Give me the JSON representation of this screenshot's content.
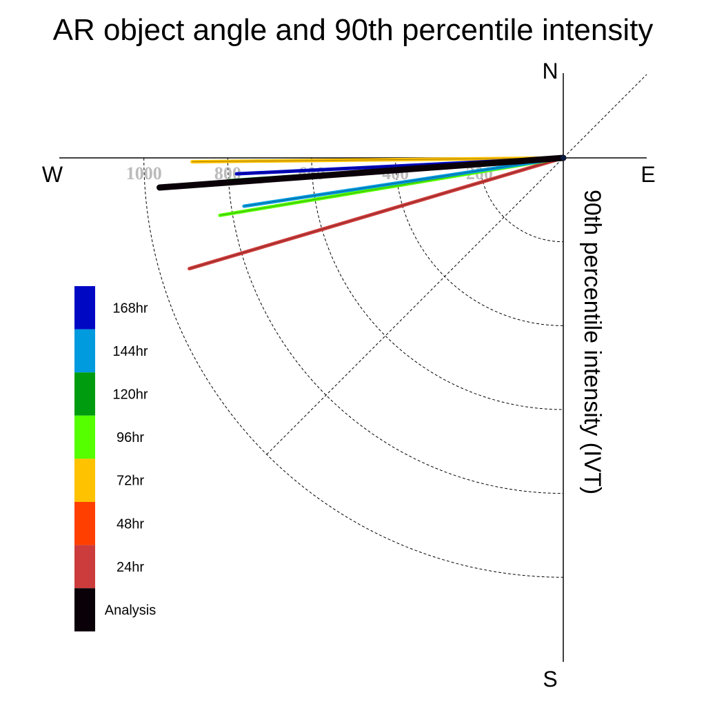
{
  "chart_data": {
    "type": "polar-vector",
    "title": "AR object angle and 90th percentile intensity",
    "ylabel": "90th percentile intensity (IVT)",
    "compass": {
      "north": "N",
      "south": "S",
      "west": "W",
      "east": "E"
    },
    "radial_ticks": [
      "200",
      "400",
      "600",
      "800",
      "1000"
    ],
    "radial_range": [
      0,
      1000
    ],
    "grid": "dashed",
    "legend_placement": "left",
    "series": [
      {
        "name": "Analysis",
        "color": "#0a0008",
        "angle_below_west_deg": 4.2,
        "intensity": 965
      },
      {
        "name": "24hr",
        "color": "#cc3c3c",
        "angle_below_west_deg": 16.5,
        "intensity": 930
      },
      {
        "name": "48hr",
        "color": "#ff3f00",
        "angle_below_west_deg": 16.5,
        "intensity": 925
      },
      {
        "name": "72hr",
        "color": "#ffc200",
        "angle_below_west_deg": 0.6,
        "intensity": 885
      },
      {
        "name": "96hr",
        "color": "#55ff00",
        "angle_below_west_deg": 9.5,
        "intensity": 830
      },
      {
        "name": "120hr",
        "color": "#009c0f",
        "angle_below_west_deg": 3.9,
        "intensity": 800
      },
      {
        "name": "144hr",
        "color": "#009adf",
        "angle_below_west_deg": 8.6,
        "intensity": 770
      },
      {
        "name": "168hr",
        "color": "#0008c4",
        "angle_below_west_deg": 2.8,
        "intensity": 780
      }
    ],
    "legend_order": [
      "168hr",
      "144hr",
      "120hr",
      "96hr",
      "72hr",
      "48hr",
      "24hr",
      "Analysis"
    ]
  }
}
